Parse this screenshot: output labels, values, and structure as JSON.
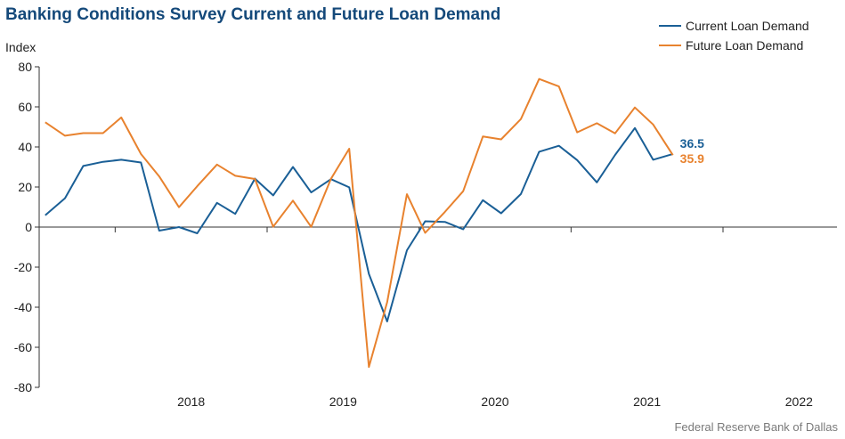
{
  "chart_data": {
    "type": "line",
    "title": "Banking Conditions Survey Current and Future Loan Demand",
    "ylabel": "Index",
    "xlabel": "",
    "ylim": [
      -80,
      80
    ],
    "yticks": [
      -80,
      -60,
      -40,
      -20,
      0,
      20,
      40,
      60,
      80
    ],
    "year_labels": [
      "2018",
      "2019",
      "2020",
      "2021",
      "2022"
    ],
    "x_start": 2017.5,
    "x_end": 2022.75,
    "grid": false,
    "legend_position": "top-right",
    "series": [
      {
        "name": "Current Loan Demand",
        "color": "#1a5f96",
        "end_label": "36.5",
        "points": [
          [
            2017.54,
            5.9
          ],
          [
            2017.67,
            14.4
          ],
          [
            2017.79,
            30.5
          ],
          [
            2017.92,
            32.6
          ],
          [
            2018.04,
            33.6
          ],
          [
            2018.17,
            32.2
          ],
          [
            2018.29,
            -1.8
          ],
          [
            2018.42,
            0.0
          ],
          [
            2018.54,
            -3.1
          ],
          [
            2018.67,
            12.1
          ],
          [
            2018.79,
            6.6
          ],
          [
            2018.92,
            24.2
          ],
          [
            2019.04,
            15.8
          ],
          [
            2019.17,
            30.0
          ],
          [
            2019.29,
            17.3
          ],
          [
            2019.42,
            23.9
          ],
          [
            2019.54,
            19.8
          ],
          [
            2019.67,
            -23.4
          ],
          [
            2019.79,
            -47.1
          ],
          [
            2019.92,
            -11.6
          ],
          [
            2020.04,
            2.9
          ],
          [
            2020.17,
            2.6
          ],
          [
            2020.29,
            -1.1
          ],
          [
            2020.42,
            13.4
          ],
          [
            2020.54,
            6.9
          ],
          [
            2020.67,
            16.5
          ],
          [
            2020.79,
            37.6
          ],
          [
            2020.92,
            40.6
          ],
          [
            2021.04,
            33.4
          ],
          [
            2021.17,
            22.3
          ],
          [
            2021.29,
            36.0
          ],
          [
            2021.42,
            49.4
          ],
          [
            2021.54,
            33.6
          ],
          [
            2021.67,
            36.5
          ]
        ]
      },
      {
        "name": "Future Loan Demand",
        "color": "#e8822e",
        "end_label": "35.9",
        "points": [
          [
            2017.54,
            52.3
          ],
          [
            2017.67,
            45.6
          ],
          [
            2017.79,
            46.9
          ],
          [
            2017.92,
            46.9
          ],
          [
            2018.04,
            54.7
          ],
          [
            2018.17,
            36.5
          ],
          [
            2018.29,
            25.3
          ],
          [
            2018.42,
            9.9
          ],
          [
            2018.54,
            20.4
          ],
          [
            2018.67,
            31.2
          ],
          [
            2018.79,
            25.6
          ],
          [
            2018.92,
            24.0
          ],
          [
            2019.04,
            0.2
          ],
          [
            2019.17,
            13.2
          ],
          [
            2019.29,
            0.1
          ],
          [
            2019.42,
            24.1
          ],
          [
            2019.54,
            39.1
          ],
          [
            2019.67,
            -69.8
          ],
          [
            2019.79,
            -37.5
          ],
          [
            2019.92,
            16.4
          ],
          [
            2020.04,
            -2.9
          ],
          [
            2020.17,
            7.6
          ],
          [
            2020.29,
            17.9
          ],
          [
            2020.42,
            45.2
          ],
          [
            2020.54,
            43.8
          ],
          [
            2020.67,
            53.9
          ],
          [
            2020.79,
            73.9
          ],
          [
            2020.92,
            70.2
          ],
          [
            2021.04,
            47.3
          ],
          [
            2021.17,
            51.8
          ],
          [
            2021.29,
            46.8
          ],
          [
            2021.42,
            59.7
          ],
          [
            2021.54,
            51.2
          ],
          [
            2021.67,
            35.9
          ]
        ]
      }
    ]
  },
  "source": "Federal Reserve Bank of Dallas"
}
